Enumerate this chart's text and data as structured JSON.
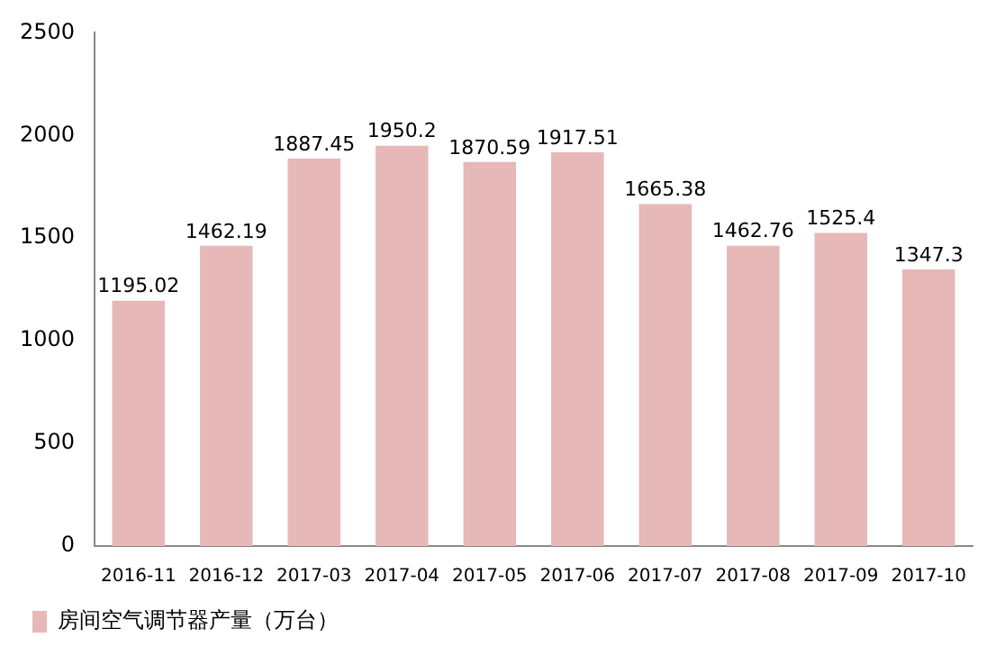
{
  "chart_data": {
    "type": "bar",
    "categories": [
      "2016-11",
      "2016-12",
      "2017-03",
      "2017-04",
      "2017-05",
      "2017-06",
      "2017-07",
      "2017-08",
      "2017-09",
      "2017-10"
    ],
    "series": [
      {
        "name": "房间空气调节器产量（万台）",
        "color": "#e6b8b7",
        "values": [
          1195.02,
          1462.19,
          1887.45,
          1950.2,
          1870.59,
          1917.51,
          1665.38,
          1462.76,
          1525.4,
          1347.3
        ]
      }
    ],
    "ylim": [
      0,
      2500
    ],
    "yticks": [
      0,
      500,
      1000,
      1500,
      2000,
      2500
    ],
    "grid": false,
    "legend": "bottom left",
    "data_labels": true
  }
}
